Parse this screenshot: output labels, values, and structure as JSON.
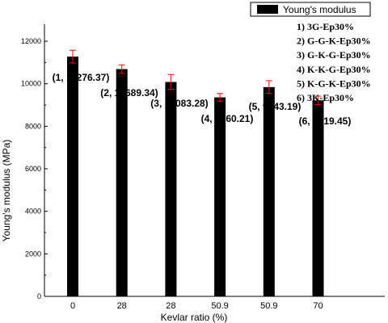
{
  "chart_data": {
    "type": "bar",
    "title": "",
    "xlabel": "Kevlar ratio (%)",
    "ylabel": "Young's modulus (MPa)",
    "categories": [
      "0",
      "28",
      "28",
      "50.9",
      "50.9",
      "70"
    ],
    "series": [
      {
        "name": "Young's modulus",
        "values": [
          11276.37,
          10689.34,
          10083.28,
          9360.21,
          9843.19,
          9219.45
        ],
        "errors": [
          300,
          200,
          350,
          180,
          300,
          200
        ]
      }
    ],
    "data_labels": [
      "(1, 11276.37)",
      "(2, 10689.34)",
      "(3, 10083.28)",
      "(4, 9360.21)",
      "(5, 9843.19)",
      "(6, 9219.45)"
    ],
    "ylim": [
      0,
      12800
    ],
    "yticks": [
      "0",
      "2000",
      "4000",
      "6000",
      "8000",
      "10000",
      "12000"
    ],
    "grid": false,
    "legend_position": "top-right",
    "annotations": [
      "1) 3G-Ep30%",
      "2) G-G-K-Ep30%",
      "3) G-K-G-Ep30%",
      "4) K-K-G-Ep30%",
      "5) K-G-K-Ep30%",
      "6) 3K-Ep30%"
    ],
    "colors": {
      "bar": "#000000",
      "error_bar": "#ff0000",
      "axis": "#000000"
    }
  }
}
